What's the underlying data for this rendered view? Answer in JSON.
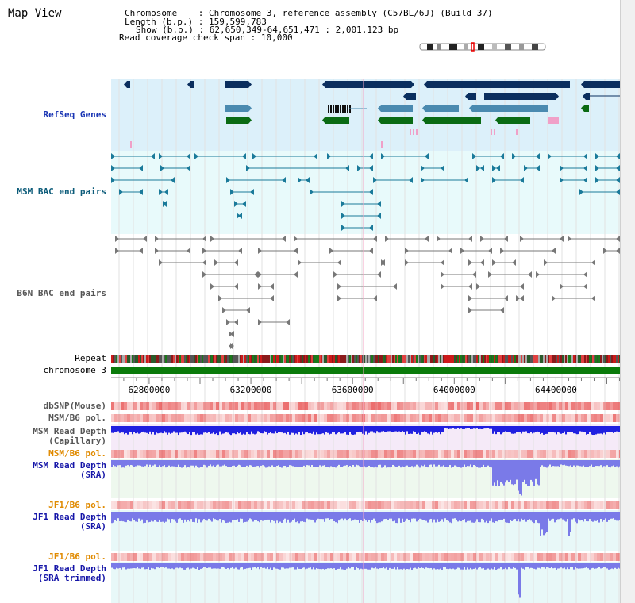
{
  "title": "Map View",
  "info": {
    "chromosome_key": "Chromosome",
    "chromosome_val": "Chromosome 3, reference assembly (C57BL/6J) (Build 37)",
    "length_key": "Length (b.p.)",
    "length_val": "159,599,783",
    "show_key": "Show (b.p.)",
    "show_val": "62,650,349-64,651,471 : 2,001,123 bp",
    "coverage_key": "Read coverage check span",
    "coverage_val": "10,000"
  },
  "tracks": {
    "refseq": "RefSeq Genes",
    "msm_bac": "MSM BAC end pairs",
    "b6n_bac": "B6N BAC end pairs",
    "repeat": "Repeat",
    "chromosome": "chromosome 3",
    "dbsnp": "dbSNP(Mouse)",
    "msm_b6_pol_1": "MSM/B6 pol.",
    "msm_depth_cap_1": "MSM Read Depth",
    "msm_depth_cap_2": "(Capillary)",
    "msm_b6_pol_2": "MSM/B6 pol.",
    "msm_depth_sra_1": "MSM Read Depth",
    "msm_depth_sra_2": "(SRA)",
    "jf1_b6_pol_1": "JF1/B6 pol.",
    "jf1_depth_sra_1": "JF1 Read Depth",
    "jf1_depth_sra_2": "(SRA)",
    "jf1_b6_pol_2": "JF1/B6 pol.",
    "jf1_depth_trim_1": "JF1 Read Depth",
    "jf1_depth_trim_2": "(SRA trimmed)"
  },
  "axis": {
    "ticks": [
      {
        "label": "62800000",
        "pos": 62800000
      },
      {
        "label": "63200000",
        "pos": 63200000
      },
      {
        "label": "63600000",
        "pos": 63600000
      },
      {
        "label": "64000000",
        "pos": 64000000
      },
      {
        "label": "64400000",
        "pos": 64400000
      }
    ],
    "range": [
      62650349,
      64651471
    ]
  },
  "colors": {
    "refseq_bg": "#dcf0fa",
    "msm_bac_bg": "#e8fafb",
    "gene_navy": "#0a2e5e",
    "gene_steel": "#4a8ab0",
    "gene_green": "#0a6b14",
    "gene_pink": "#f0a0c8",
    "teal": "#1a7a9a",
    "grey": "#777777",
    "chrom_green": "#0a7a0a",
    "depth_blue": "#2020e0",
    "depth_light": "#7a7ae8"
  }
}
